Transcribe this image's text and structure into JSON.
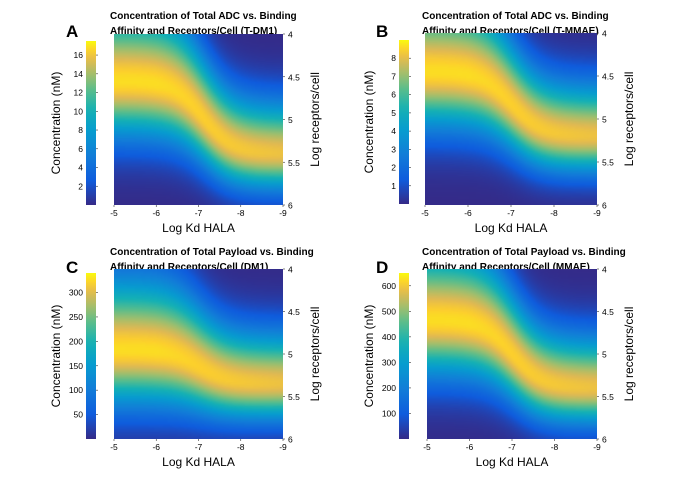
{
  "chart_data": [
    {
      "type": "heatmap",
      "panel_label": "A",
      "title": [
        "Concentration of Total ADC vs. Binding",
        "Affinity and Receptors/Cell (T-DM1)"
      ],
      "xlabel": "Log Kd HALA",
      "ylabel": "Log receptors/cell",
      "colorbar_label": "Concentration (nM)",
      "xlim": [
        -5,
        -9
      ],
      "ylim": [
        4,
        6
      ],
      "x_ticks": [
        "-5",
        "-6",
        "-7",
        "-8",
        "-9"
      ],
      "y_ticks": [
        "4",
        "4.5",
        "5",
        "5.5",
        "6"
      ],
      "colorbar_range": [
        0,
        17.5
      ],
      "colorbar_ticks": [
        "2",
        "4",
        "6",
        "8",
        "10",
        "12",
        "14",
        "16"
      ],
      "colorbar_tick_values": [
        2,
        4,
        6,
        8,
        10,
        12,
        14,
        16
      ],
      "ridge_log_receptors_at_kd_-5": 4.55,
      "ridge_log_receptors_at_kd_-9": 5.4,
      "ridge_transition_log_kd": -7.1,
      "peak_concentration": 17
    },
    {
      "type": "heatmap",
      "panel_label": "B",
      "title": [
        "Concentration of Total ADC vs. Binding",
        "Affinity and Receptors/Cell (T-MMAE)"
      ],
      "xlabel": "Log Kd HALA",
      "ylabel": "Log receptors/cell",
      "colorbar_label": "Concentration (nM)",
      "xlim": [
        -5,
        -9
      ],
      "ylim": [
        4,
        6
      ],
      "x_ticks": [
        "-5",
        "-6",
        "-7",
        "-8",
        "-9"
      ],
      "y_ticks": [
        "4",
        "4.5",
        "5",
        "5.5",
        "6"
      ],
      "colorbar_range": [
        0,
        9
      ],
      "colorbar_ticks": [
        "1",
        "2",
        "3",
        "4",
        "5",
        "6",
        "7",
        "8"
      ],
      "colorbar_tick_values": [
        1,
        2,
        3,
        4,
        5,
        6,
        7,
        8
      ],
      "ridge_log_receptors_at_kd_-5": 4.45,
      "ridge_log_receptors_at_kd_-9": 5.2,
      "ridge_transition_log_kd": -7.0,
      "peak_concentration": 8.7
    },
    {
      "type": "heatmap",
      "panel_label": "C",
      "title": [
        "Concentration of Total Payload vs. Binding",
        "Affinity and Receptors/Cell (DM1)"
      ],
      "xlabel": "Log Kd HALA",
      "ylabel": "Log receptors/cell",
      "colorbar_label": "Concentration (nM)",
      "xlim": [
        -5,
        -9
      ],
      "ylim": [
        4,
        6
      ],
      "x_ticks": [
        "-5",
        "-6",
        "-7",
        "-8",
        "-9"
      ],
      "y_ticks": [
        "4",
        "4.5",
        "5",
        "5.5",
        "6"
      ],
      "colorbar_range": [
        0,
        340
      ],
      "colorbar_ticks": [
        "50",
        "100",
        "150",
        "200",
        "250",
        "300"
      ],
      "colorbar_tick_values": [
        50,
        100,
        150,
        200,
        250,
        300
      ],
      "ridge_log_receptors_at_kd_-5": 4.95,
      "ridge_log_receptors_at_kd_-9": 5.35,
      "ridge_transition_log_kd": -7.0,
      "peak_concentration": 330
    },
    {
      "type": "heatmap",
      "panel_label": "D",
      "title": [
        "Concentration of Total Payload vs. Binding",
        "Affinity and Receptors/Cell (MMAE)"
      ],
      "xlabel": "Log Kd HALA",
      "ylabel": "Log receptors/cell",
      "colorbar_label": "Concentration (nM)",
      "xlim": [
        -5,
        -9
      ],
      "ylim": [
        4,
        6
      ],
      "x_ticks": [
        "-5",
        "-6",
        "-7",
        "-8",
        "-9"
      ],
      "y_ticks": [
        "4",
        "4.5",
        "5",
        "5.5",
        "6"
      ],
      "colorbar_range": [
        0,
        650
      ],
      "colorbar_ticks": [
        "100",
        "200",
        "300",
        "400",
        "500",
        "600"
      ],
      "colorbar_tick_values": [
        100,
        200,
        300,
        400,
        500,
        600
      ],
      "ridge_log_receptors_at_kd_-5": 4.6,
      "ridge_log_receptors_at_kd_-9": 5.4,
      "ridge_transition_log_kd": -7.0,
      "peak_concentration": 640
    }
  ]
}
